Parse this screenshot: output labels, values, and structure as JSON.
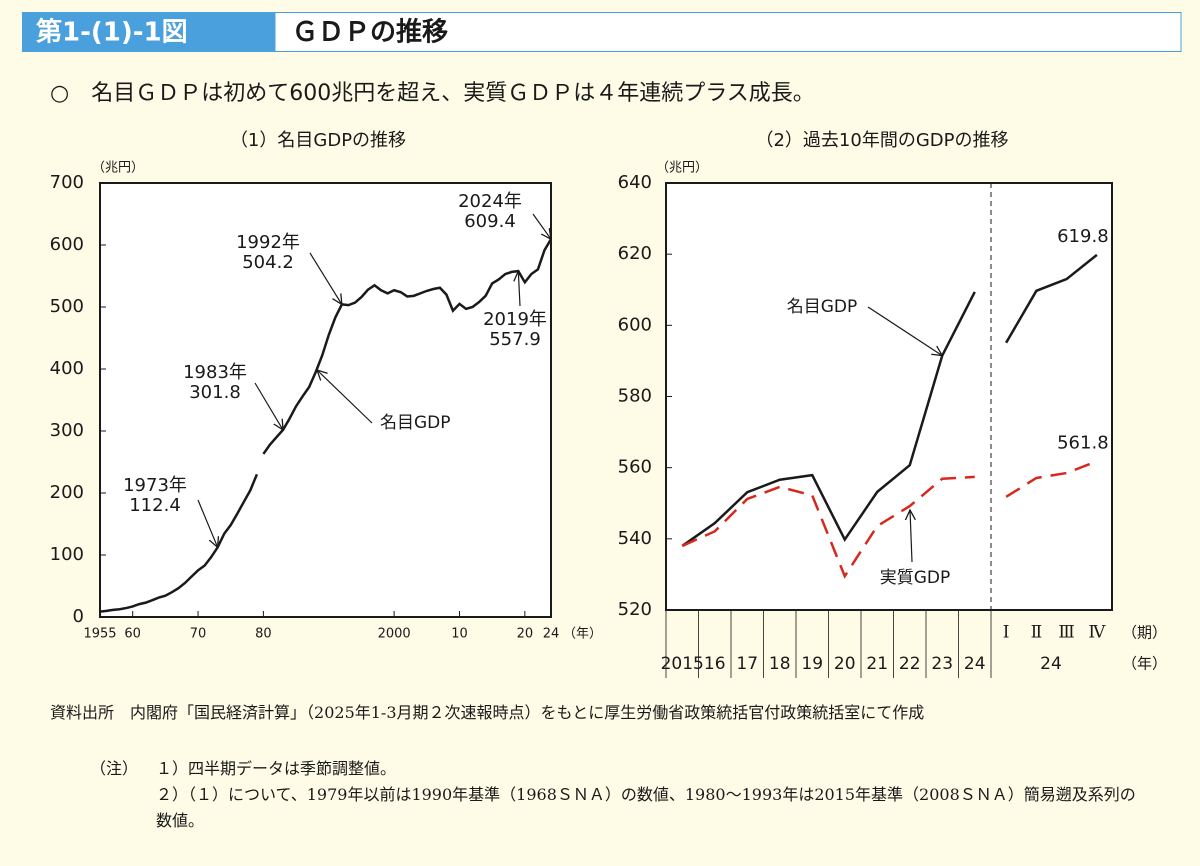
{
  "header": {
    "figure_number": "第1-(1)-1図",
    "title": "ＧＤＰの推移"
  },
  "summary": "○　名目ＧＤＰは初めて600兆円を超え、実質ＧＤＰは４年連続プラス成長。",
  "chart_data": [
    {
      "type": "line",
      "title": "（1）名目GDPの推移",
      "y_unit": "（兆円）",
      "x_unit": "（年）",
      "xlim": [
        1955,
        2024
      ],
      "xticks": [
        1955,
        {
          "value": 1960,
          "label": "60"
        },
        {
          "value": 1970,
          "label": "70"
        },
        {
          "value": 1980,
          "label": "80"
        },
        2000,
        {
          "value": 2010,
          "label": "10"
        },
        {
          "value": 2020,
          "label": "20"
        },
        {
          "value": 2024,
          "label": "24"
        }
      ],
      "ylim": [
        0,
        700
      ],
      "yticks": [
        0,
        100,
        200,
        300,
        400,
        500,
        600,
        700
      ],
      "series": [
        {
          "color": "#1a1a1a",
          "x": [
            1955,
            1956,
            1957,
            1958,
            1959,
            1960,
            1961,
            1962,
            1963,
            1964,
            1965,
            1966,
            1967,
            1968,
            1969,
            1970,
            1971,
            1972,
            1973,
            1974,
            1975,
            1976,
            1977,
            1978,
            1979
          ],
          "values": [
            8.6,
            9.9,
            11.5,
            12.5,
            14.4,
            17,
            20.8,
            23.2,
            27.1,
            31.4,
            34.3,
            40,
            46.4,
            54.9,
            65.1,
            75.3,
            82.9,
            96.5,
            112.4,
            134.2,
            148.3,
            166.6,
            185.6,
            204.4,
            230
          ]
        },
        {
          "color": "#1a1a1a",
          "x": [
            1980,
            1981,
            1982,
            1983,
            1984,
            1985,
            1986,
            1987,
            1988,
            1989,
            1990,
            1991,
            1992,
            1993,
            1994,
            1995,
            1996,
            1997,
            1998,
            1999,
            2000,
            2001,
            2002,
            2003,
            2004,
            2005,
            2006,
            2007,
            2008,
            2009,
            2010,
            2011,
            2012,
            2013,
            2014,
            2015,
            2016,
            2017,
            2018,
            2019,
            2020,
            2021,
            2022,
            2023,
            2024
          ],
          "values": [
            263,
            278,
            290,
            301.8,
            320,
            340,
            356,
            371,
            395,
            422,
            455,
            483,
            504.2,
            503,
            507,
            516,
            528,
            535,
            527,
            522,
            527,
            524,
            517,
            518,
            522,
            526,
            529,
            531,
            520,
            494,
            505,
            497,
            500,
            508,
            518,
            538,
            544.4,
            553.1,
            556.6,
            557.9,
            539.8,
            553.2,
            560.7,
            591.5,
            609.4
          ]
        }
      ],
      "series_label": "名目GDP",
      "annotations": [
        {
          "label": "1973年",
          "x": 1973,
          "value": 112.4
        },
        {
          "label": "1983年",
          "x": 1983,
          "value": 301.8
        },
        {
          "label": "1992年",
          "x": 1992,
          "value": 504.2
        },
        {
          "label": "2019年",
          "x": 2019,
          "value": 557.9
        },
        {
          "label": "2024年",
          "x": 2024,
          "value": 609.4
        }
      ]
    },
    {
      "type": "line",
      "title": "（2）過去10年間のGDPの推移",
      "y_unit": "（兆円）",
      "ylim": [
        520,
        640
      ],
      "yticks": [
        520,
        540,
        560,
        580,
        600,
        620,
        640
      ],
      "panels": [
        {
          "categories": [
            "2015",
            "16",
            "17",
            "18",
            "19",
            "20",
            "21",
            "22",
            "23",
            "24"
          ],
          "series": [
            {
              "name": "名目GDP",
              "color": "#1a1a1a",
              "values": [
                538,
                544.4,
                553.1,
                556.6,
                557.9,
                539.8,
                553.2,
                560.7,
                591.5,
                609.4
              ]
            },
            {
              "name": "実質GDP",
              "color": "#d7281e",
              "dashed": true,
              "values": [
                538,
                542.1,
                551.2,
                554.6,
                552.2,
                529.5,
                543.6,
                549.2,
                556.9,
                557.4
              ]
            }
          ]
        },
        {
          "categories": [
            "Ⅰ",
            "Ⅱ",
            "Ⅲ",
            "Ⅳ"
          ],
          "group_label": "24",
          "category_unit": "（期）",
          "group_unit": "（年）",
          "series": [
            {
              "color": "#1a1a1a",
              "label_last": true,
              "values": [
                595.1,
                609.7,
                613,
                619.8
              ]
            },
            {
              "color": "#d7281e",
              "dashed": true,
              "label_last": true,
              "values": [
                551.8,
                557.1,
                558.5,
                561.8
              ]
            }
          ]
        }
      ]
    }
  ],
  "source": {
    "label": "資料出所",
    "text": "内閣府「国民経済計算」（2025年1-3月期２次速報時点）をもとに厚生労働省政策統括官付政策統括室にて作成"
  },
  "notes": {
    "label": "（注）",
    "items": [
      "１）四半期データは季節調整値。",
      "２）（１）について、1979年以前は1990年基準（1968ＳＮＡ）の数値、1980〜1993年は2015年基準（2008ＳＮＡ）簡易遡及系列の数値。"
    ]
  }
}
